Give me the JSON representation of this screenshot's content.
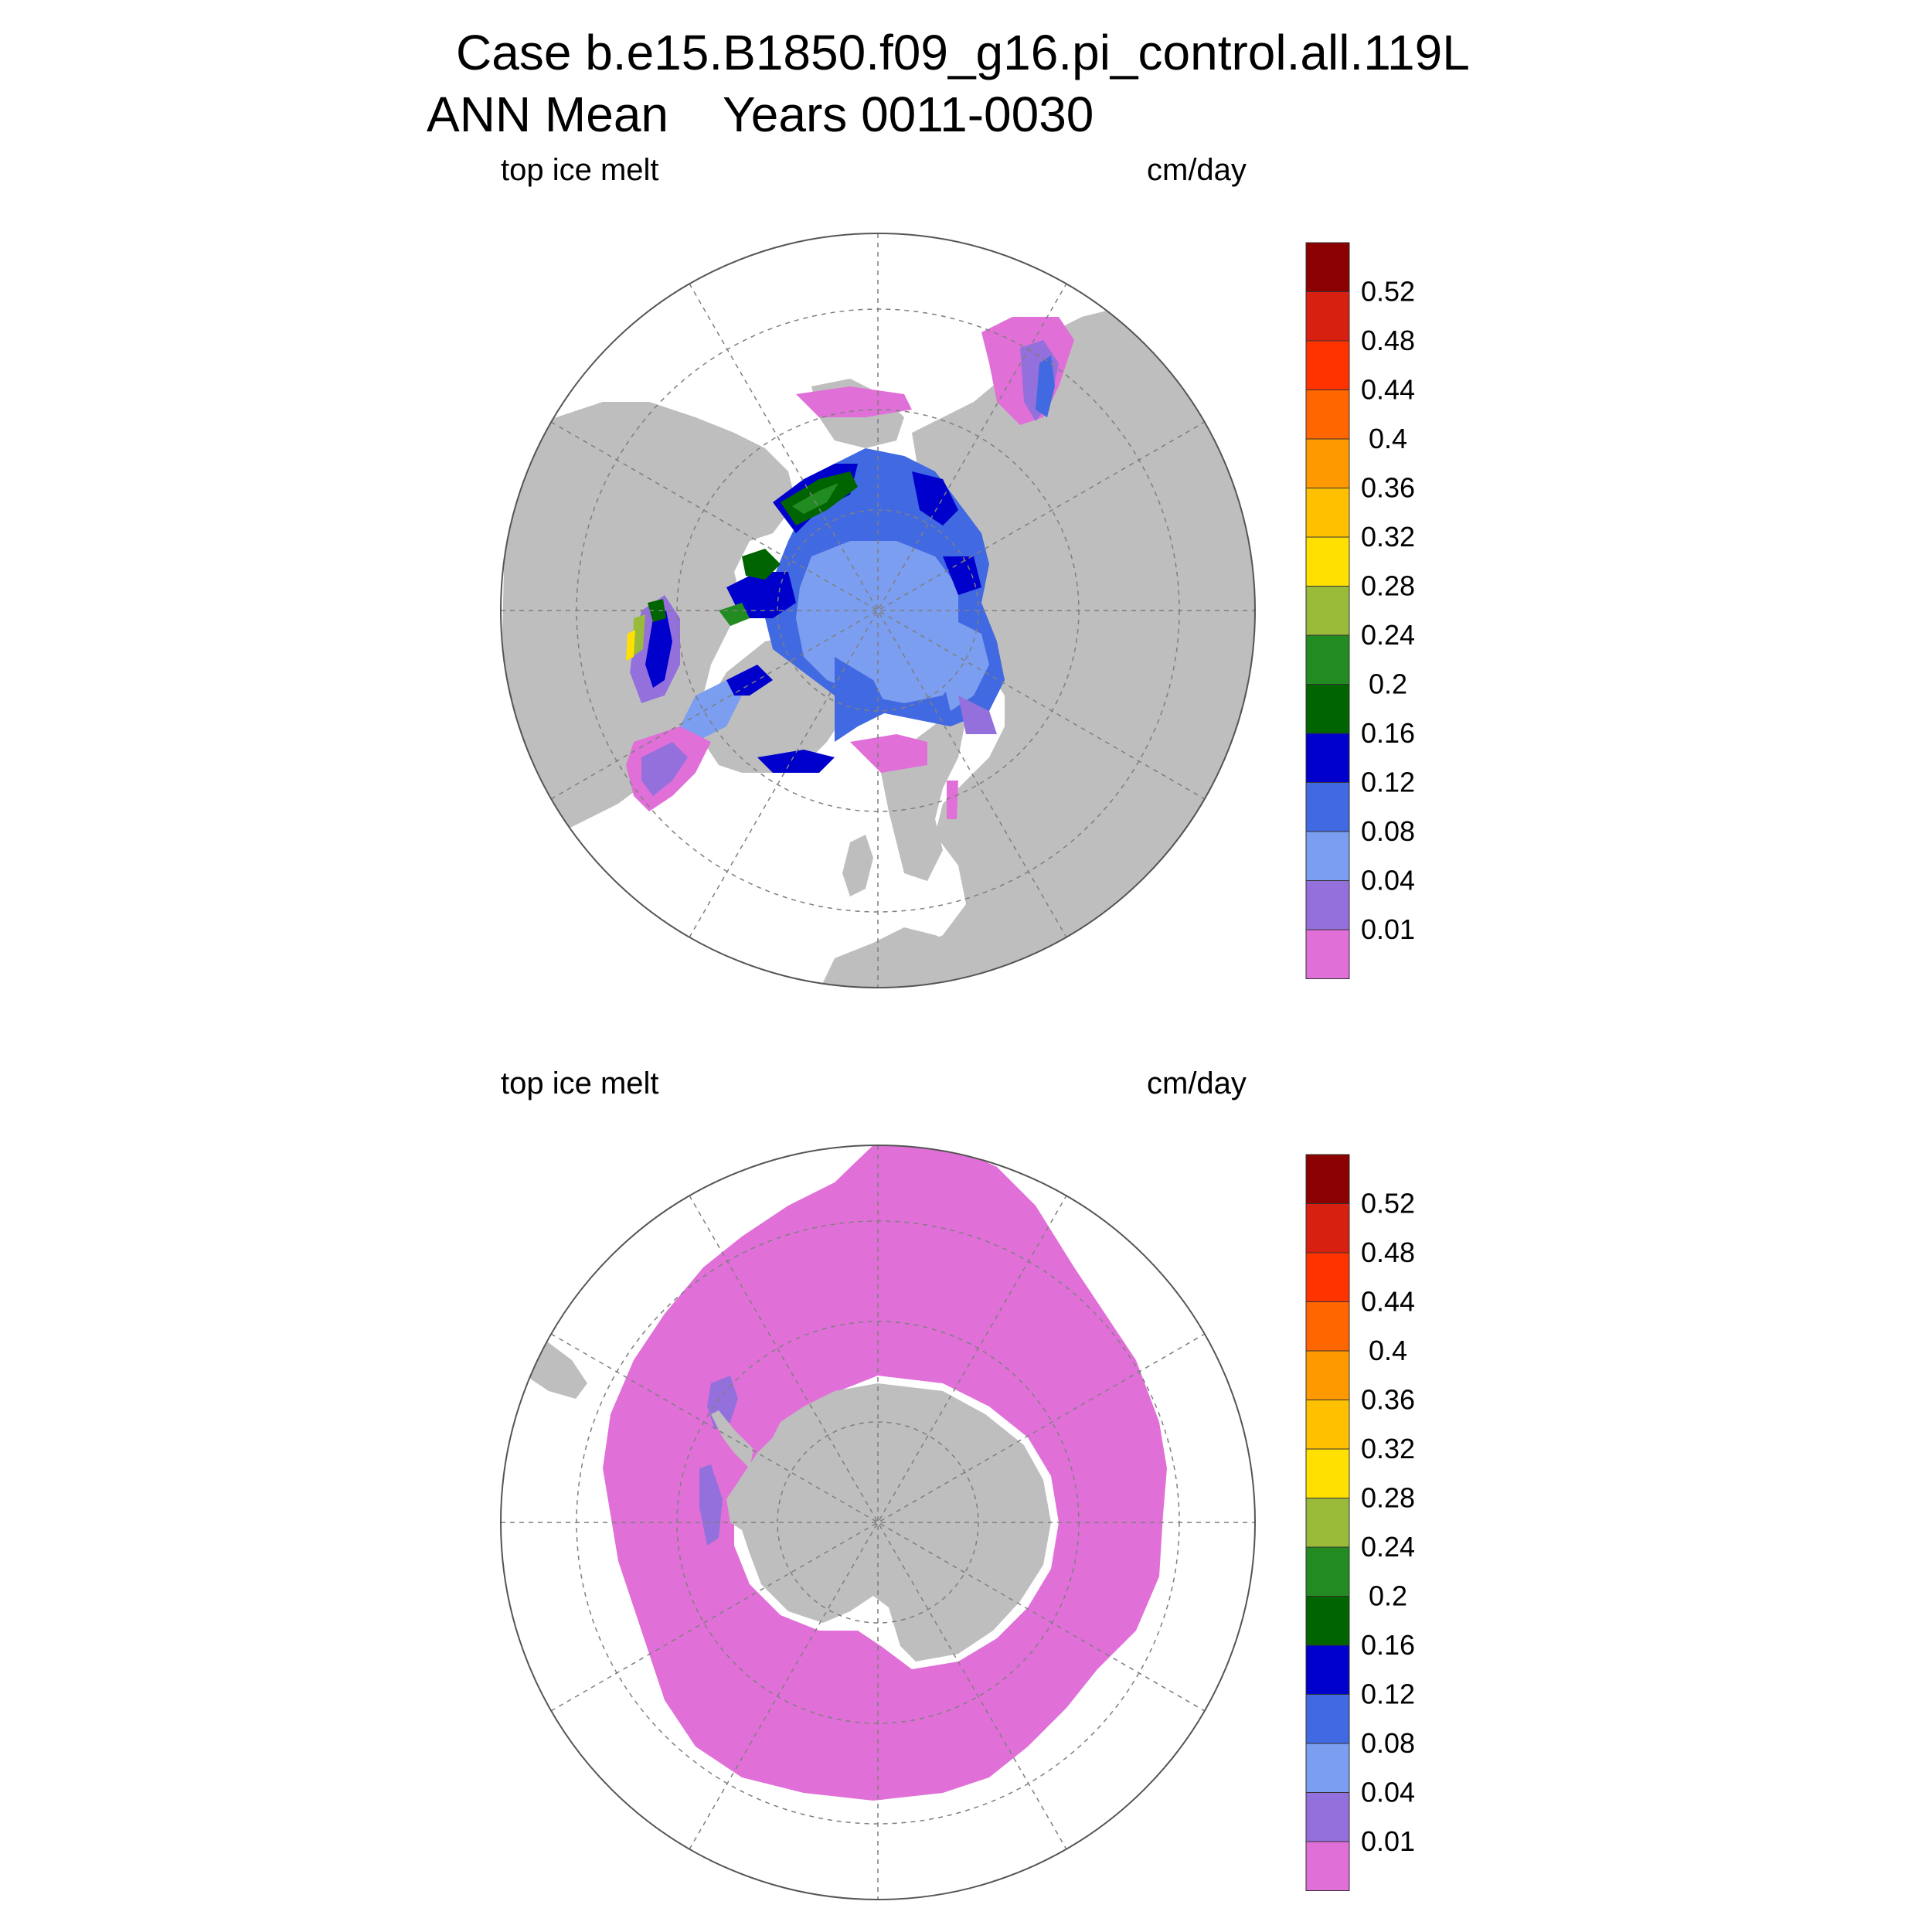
{
  "title": {
    "line1": "Case b.e15.B1850.f09_g16.pi_control.all.119L",
    "line2": "ANN Mean    Years 0011-0030"
  },
  "panels": [
    {
      "left_label": "top ice melt",
      "right_label": "cm/day",
      "hemisphere": "north"
    },
    {
      "left_label": "top ice melt",
      "right_label": "cm/day",
      "hemisphere": "south"
    }
  ],
  "colorbar": {
    "levels": [
      "0.01",
      "0.04",
      "0.08",
      "0.12",
      "0.16",
      "0.2",
      "0.24",
      "0.28",
      "0.32",
      "0.36",
      "0.4",
      "0.44",
      "0.48",
      "0.52"
    ],
    "colors": [
      "#e070d8",
      "#9370db",
      "#7b9ef0",
      "#4169e1",
      "#0000cd",
      "#006400",
      "#228b22",
      "#9aba3a",
      "#ffe000",
      "#ffc000",
      "#ff9900",
      "#ff6600",
      "#ff3300",
      "#d82010",
      "#8b0000"
    ]
  },
  "map_colors": {
    "land": "#bebebe",
    "ocean": "#ffffff",
    "grid": "#7f7f7f"
  }
}
